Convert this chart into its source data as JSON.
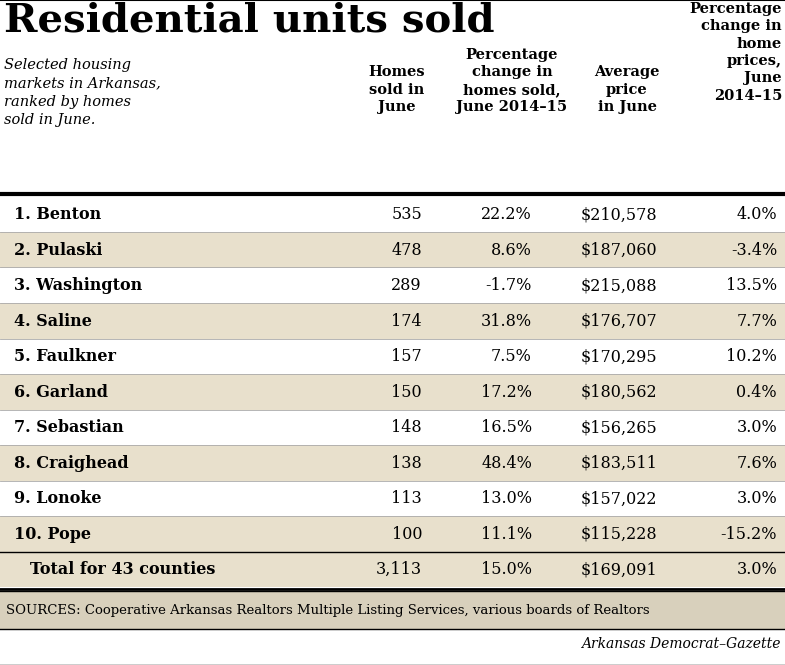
{
  "title": "Residential units sold",
  "subtitle": "Selected housing\nmarkets in Arkansas,\nranked by homes\nsold in June.",
  "col_headers": [
    "Homes\nsold in\nJune",
    "Percentage\nchange in\nhomes sold,\nJune 2014–15",
    "Average\nprice\nin June",
    "Percentage\nchange in\nhome\nprices,\nJune\n2014–15"
  ],
  "rows": [
    {
      "name": "1. Benton",
      "homes": "535",
      "pct_change": "22.2%",
      "avg_price": "$210,578",
      "price_change": "4.0%",
      "shaded": false
    },
    {
      "name": "2. Pulaski",
      "homes": "478",
      "pct_change": "8.6%",
      "avg_price": "$187,060",
      "price_change": "-3.4%",
      "shaded": true
    },
    {
      "name": "3. Washington",
      "homes": "289",
      "pct_change": "-1.7%",
      "avg_price": "$215,088",
      "price_change": "13.5%",
      "shaded": false
    },
    {
      "name": "4. Saline",
      "homes": "174",
      "pct_change": "31.8%",
      "avg_price": "$176,707",
      "price_change": "7.7%",
      "shaded": true
    },
    {
      "name": "5. Faulkner",
      "homes": "157",
      "pct_change": "7.5%",
      "avg_price": "$170,295",
      "price_change": "10.2%",
      "shaded": false
    },
    {
      "name": "6. Garland",
      "homes": "150",
      "pct_change": "17.2%",
      "avg_price": "$180,562",
      "price_change": "0.4%",
      "shaded": true
    },
    {
      "name": "7. Sebastian",
      "homes": "148",
      "pct_change": "16.5%",
      "avg_price": "$156,265",
      "price_change": "3.0%",
      "shaded": false
    },
    {
      "name": "8. Craighead",
      "homes": "138",
      "pct_change": "48.4%",
      "avg_price": "$183,511",
      "price_change": "7.6%",
      "shaded": true
    },
    {
      "name": "9. Lonoke",
      "homes": "113",
      "pct_change": "13.0%",
      "avg_price": "$157,022",
      "price_change": "3.0%",
      "shaded": false
    },
    {
      "name": "10. Pope",
      "homes": "100",
      "pct_change": "11.1%",
      "avg_price": "$115,228",
      "price_change": "-15.2%",
      "shaded": true
    },
    {
      "name": "Total for 43 counties",
      "homes": "3,113",
      "pct_change": "15.0%",
      "avg_price": "$169,091",
      "price_change": "3.0%",
      "shaded": true,
      "is_total": true
    }
  ],
  "source_text": "SOURCES: Cooperative Arkansas Realtors Multiple Listing Services, various boards of Realtors",
  "credit_text": "Arkansas Democrat–Gazette",
  "bg_color": "#ffffff",
  "shaded_color": "#e8e0cc",
  "title_color": "#000000",
  "text_color": "#000000",
  "line_color": "#000000",
  "source_bg": "#d8d0bc"
}
